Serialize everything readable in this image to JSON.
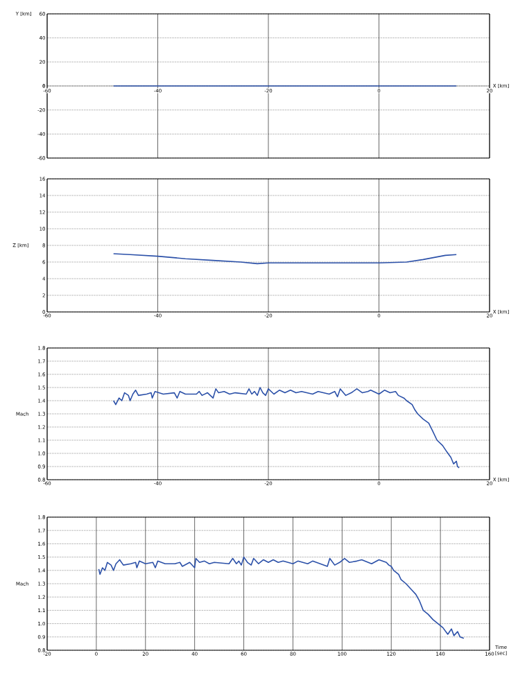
{
  "chart_data": [
    {
      "type": "line",
      "xlabel": "X [km]",
      "ylabel": "Y [km]",
      "xlim": [
        -60,
        20
      ],
      "ylim": [
        -60,
        60
      ],
      "xticks": [
        -60,
        -40,
        -20,
        0,
        20
      ],
      "yticks": [
        -60,
        -40,
        -20,
        0,
        20,
        40,
        60
      ],
      "grid": true,
      "series": [
        {
          "color": "#2b50a8",
          "x": [
            -48,
            14
          ],
          "values": [
            0,
            0
          ]
        }
      ]
    },
    {
      "type": "line",
      "xlabel": "X [km]",
      "ylabel": "Z [km]",
      "xlim": [
        -60,
        20
      ],
      "ylim": [
        0,
        16
      ],
      "xticks": [
        -60,
        -40,
        -20,
        0,
        20
      ],
      "yticks": [
        0,
        2,
        4,
        6,
        8,
        10,
        12,
        14,
        16
      ],
      "grid": true,
      "series": [
        {
          "color": "#2b50a8",
          "x": [
            -48,
            -45,
            -40,
            -35,
            -30,
            -25,
            -22,
            -20,
            -10,
            0,
            5,
            8,
            12,
            14
          ],
          "values": [
            7.0,
            6.9,
            6.7,
            6.4,
            6.2,
            6.0,
            5.8,
            5.9,
            5.9,
            5.9,
            6.0,
            6.3,
            6.8,
            6.9
          ]
        }
      ]
    },
    {
      "type": "line",
      "xlabel": "X [km]",
      "ylabel": "Mach",
      "xlim": [
        -60,
        20
      ],
      "ylim": [
        0.8,
        1.8
      ],
      "xticks": [
        -60,
        -40,
        -20,
        0,
        20
      ],
      "yticks": [
        0.8,
        0.9,
        {
          "value": 1.0,
          "label": "1.0"
        },
        1.1,
        1.2,
        1.3,
        1.4,
        1.5,
        1.6,
        1.7,
        1.8
      ],
      "grid": true,
      "series": [
        {
          "color": "#2b50a8",
          "x": [
            -48,
            -47.6,
            -47,
            -46.5,
            -46,
            -45.3,
            -45,
            -44.5,
            -44,
            -43.5,
            -42,
            -41.2,
            -41,
            -40.5,
            -39,
            -37,
            -36.5,
            -36,
            -35,
            -33,
            -32.5,
            -32,
            -31,
            -30,
            -29.5,
            -29,
            -28,
            -27,
            -26,
            -24,
            -23.5,
            -23,
            -22.5,
            -22,
            -21.5,
            -21,
            -20.5,
            -20,
            -19,
            -18,
            -17,
            -16,
            -15,
            -14,
            -12,
            -11,
            -9,
            -8,
            -7.5,
            -7,
            -6,
            -5,
            -4,
            -3,
            -2,
            -1.5,
            0,
            1,
            2,
            3,
            3.5,
            4.5,
            5,
            6,
            6.5,
            7,
            8,
            9,
            9.7,
            10.5,
            11.5,
            12.3,
            13,
            13.5,
            14,
            14.2,
            14.5
          ],
          "values": [
            1.4,
            1.37,
            1.42,
            1.4,
            1.46,
            1.44,
            1.4,
            1.45,
            1.48,
            1.44,
            1.45,
            1.46,
            1.42,
            1.47,
            1.45,
            1.46,
            1.42,
            1.47,
            1.45,
            1.45,
            1.47,
            1.44,
            1.46,
            1.42,
            1.49,
            1.46,
            1.47,
            1.45,
            1.46,
            1.45,
            1.49,
            1.45,
            1.47,
            1.44,
            1.5,
            1.46,
            1.44,
            1.49,
            1.45,
            1.48,
            1.46,
            1.48,
            1.46,
            1.47,
            1.45,
            1.47,
            1.45,
            1.47,
            1.43,
            1.49,
            1.44,
            1.46,
            1.49,
            1.46,
            1.47,
            1.48,
            1.45,
            1.48,
            1.46,
            1.47,
            1.44,
            1.42,
            1.4,
            1.37,
            1.33,
            1.3,
            1.26,
            1.23,
            1.17,
            1.1,
            1.06,
            1.01,
            0.97,
            0.92,
            0.94,
            0.9,
            0.89
          ]
        }
      ]
    },
    {
      "type": "line",
      "xlabel": "Time [sec]",
      "ylabel": "Mach",
      "xlim": [
        -20,
        160
      ],
      "ylim": [
        0.8,
        1.8
      ],
      "xticks": [
        -20,
        0,
        20,
        40,
        60,
        80,
        100,
        120,
        140,
        160
      ],
      "yticks": [
        0.8,
        0.9,
        {
          "value": 1.0,
          "label": "1.0"
        },
        1.1,
        1.2,
        1.3,
        1.4,
        1.5,
        1.6,
        1.7,
        1.8
      ],
      "grid": true,
      "series": [
        {
          "color": "#2b50a8",
          "x": [
            1,
            1.5,
            2.5,
            3.5,
            4.5,
            6,
            7,
            8,
            9.5,
            11,
            14,
            16,
            16.5,
            17.5,
            20,
            23,
            24,
            25,
            28,
            32,
            34,
            35,
            38,
            40,
            40.5,
            42,
            44,
            46,
            48,
            54,
            55.5,
            57,
            58,
            59,
            60,
            61.5,
            63,
            64,
            66,
            68,
            70,
            72,
            74,
            76,
            80,
            82,
            86,
            88,
            94,
            95,
            97,
            99,
            101,
            103,
            106,
            108,
            112,
            115,
            118,
            119,
            120,
            121,
            123,
            124,
            126,
            128,
            130,
            131.5,
            133,
            135,
            137,
            139,
            141,
            143,
            144.5,
            145.5,
            147,
            148,
            149.5
          ],
          "values": [
            1.41,
            1.37,
            1.42,
            1.4,
            1.46,
            1.44,
            1.4,
            1.45,
            1.48,
            1.44,
            1.45,
            1.46,
            1.42,
            1.47,
            1.45,
            1.46,
            1.42,
            1.47,
            1.45,
            1.45,
            1.46,
            1.43,
            1.46,
            1.42,
            1.49,
            1.46,
            1.47,
            1.45,
            1.46,
            1.45,
            1.49,
            1.45,
            1.47,
            1.44,
            1.5,
            1.46,
            1.44,
            1.49,
            1.45,
            1.48,
            1.46,
            1.48,
            1.46,
            1.47,
            1.45,
            1.47,
            1.45,
            1.47,
            1.43,
            1.49,
            1.44,
            1.46,
            1.49,
            1.46,
            1.47,
            1.48,
            1.45,
            1.48,
            1.46,
            1.44,
            1.43,
            1.4,
            1.37,
            1.33,
            1.3,
            1.26,
            1.22,
            1.17,
            1.1,
            1.07,
            1.03,
            1.0,
            0.97,
            0.92,
            0.96,
            0.91,
            0.94,
            0.9,
            0.89
          ]
        }
      ]
    }
  ]
}
